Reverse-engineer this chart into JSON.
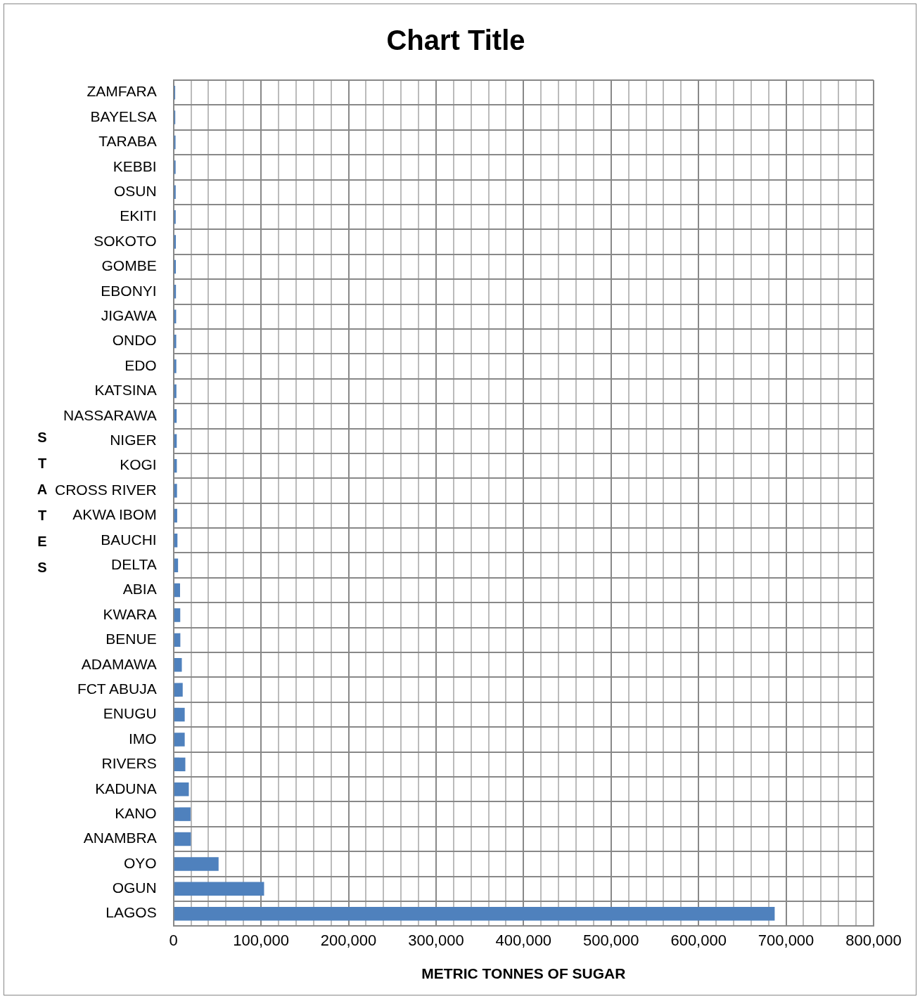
{
  "chart_data": {
    "type": "bar",
    "orientation": "horizontal",
    "title": "Chart Title",
    "xlabel": "METRIC TONNES OF SUGAR",
    "ylabel": "STATES",
    "categories": [
      "ZAMFARA",
      "BAYELSA",
      "TARABA",
      "KEBBI",
      "OSUN",
      "EKITI",
      "SOKOTO",
      "GOMBE",
      "EBONYI",
      "JIGAWA",
      "ONDO",
      "EDO",
      "KATSINA",
      "NASSARAWA",
      "NIGER",
      "KOGI",
      "CROSS RIVER",
      "AKWA IBOM",
      "BAUCHI",
      "DELTA",
      "ABIA",
      "KWARA",
      "BENUE",
      "ADAMAWA",
      "FCT ABUJA",
      "ENUGU",
      "IMO",
      "RIVERS",
      "KADUNA",
      "KANO",
      "ANAMBRA",
      "OYO",
      "OGUN",
      "LAGOS"
    ],
    "values": [
      1900,
      2000,
      2300,
      2400,
      2500,
      2500,
      2700,
      2700,
      2800,
      3000,
      3100,
      3200,
      3300,
      3600,
      3700,
      3800,
      4000,
      4200,
      4500,
      5200,
      7500,
      7700,
      7800,
      9500,
      10500,
      12800,
      12800,
      13500,
      17500,
      19500,
      19800,
      51500,
      103500,
      687000
    ],
    "color": "#4f81bd",
    "xlim": [
      0,
      800000
    ],
    "xticks": [
      0,
      {
        "value": 20000,
        "label": null
      },
      {
        "value": 40000,
        "label": null
      },
      {
        "value": 60000,
        "label": null
      },
      {
        "value": 80000,
        "label": null
      },
      {
        "value": 100000,
        "label": "100,000"
      },
      {
        "value": 120000,
        "label": null
      },
      {
        "value": 140000,
        "label": null
      },
      {
        "value": 160000,
        "label": null
      },
      {
        "value": 180000,
        "label": null
      },
      {
        "value": 200000,
        "label": "200,000"
      },
      {
        "value": 220000,
        "label": null
      },
      {
        "value": 240000,
        "label": null
      },
      {
        "value": 260000,
        "label": null
      },
      {
        "value": 280000,
        "label": null
      },
      {
        "value": 300000,
        "label": "300,000"
      },
      {
        "value": 320000,
        "label": null
      },
      {
        "value": 340000,
        "label": null
      },
      {
        "value": 360000,
        "label": null
      },
      {
        "value": 380000,
        "label": null
      },
      {
        "value": 400000,
        "label": "400,000"
      },
      {
        "value": 420000,
        "label": null
      },
      {
        "value": 440000,
        "label": null
      },
      {
        "value": 460000,
        "label": null
      },
      {
        "value": 480000,
        "label": null
      },
      {
        "value": 500000,
        "label": "500,000"
      },
      {
        "value": 520000,
        "label": null
      },
      {
        "value": 540000,
        "label": null
      },
      {
        "value": 560000,
        "label": null
      },
      {
        "value": 580000,
        "label": null
      },
      {
        "value": 600000,
        "label": "600,000"
      },
      {
        "value": 620000,
        "label": null
      },
      {
        "value": 640000,
        "label": null
      },
      {
        "value": 660000,
        "label": null
      },
      {
        "value": 680000,
        "label": null
      },
      {
        "value": 700000,
        "label": "700,000"
      },
      {
        "value": 720000,
        "label": null
      },
      {
        "value": 740000,
        "label": null
      },
      {
        "value": 760000,
        "label": null
      },
      {
        "value": 780000,
        "label": null
      },
      {
        "value": 800000,
        "label": "800,000"
      }
    ],
    "grid": true,
    "legend": false
  }
}
